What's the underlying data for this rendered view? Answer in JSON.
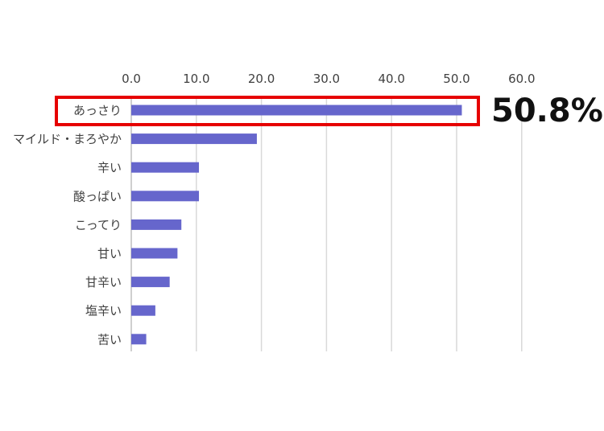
{
  "chart_data": {
    "type": "bar",
    "orientation": "horizontal",
    "categories": [
      "あっさり",
      "マイルド・まろやか",
      "辛い",
      "酸っぱい",
      "こってり",
      "甘い",
      "甘辛い",
      "塩辛い",
      "苦い"
    ],
    "values": [
      50.8,
      19.3,
      10.4,
      10.4,
      7.7,
      7.1,
      5.9,
      3.7,
      2.3
    ],
    "x_ticks": [
      "0.0",
      "10.0",
      "20.0",
      "30.0",
      "40.0",
      "50.0",
      "60.0"
    ],
    "xlim": [
      0,
      60
    ],
    "grid": true,
    "x_axis_position": "top",
    "bar_color": "#6666cc",
    "highlight": {
      "category": "あっさり",
      "label": "50.8%",
      "color": "#e60000"
    }
  }
}
